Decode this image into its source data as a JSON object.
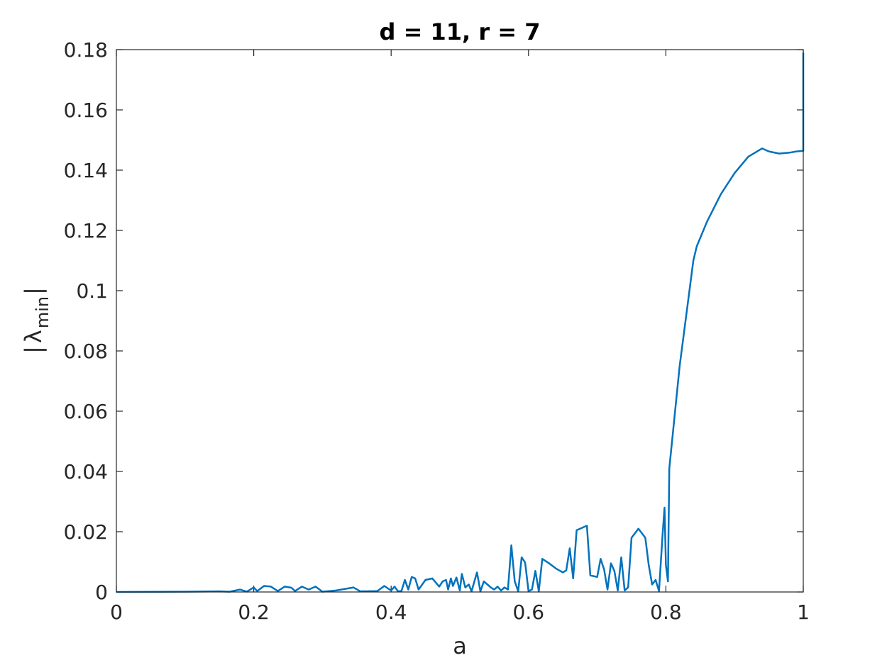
{
  "chart_data": {
    "type": "line",
    "title": "d = 11, r = 7",
    "xlabel": "a",
    "ylabel": {
      "open": "|",
      "symbol": "λ",
      "subscript": "min",
      "close": "|"
    },
    "xlim": [
      0,
      1
    ],
    "ylim": [
      0,
      0.18
    ],
    "x_ticks": [
      0,
      0.2,
      0.4,
      0.6,
      0.8,
      1
    ],
    "x_tick_labels": [
      "0",
      "0.2",
      "0.4",
      "0.6",
      "0.8",
      "1"
    ],
    "y_ticks": [
      0,
      0.02,
      0.04,
      0.06,
      0.08,
      0.1,
      0.12,
      0.14,
      0.16,
      0.18
    ],
    "y_tick_labels": [
      "0",
      "0.02",
      "0.04",
      "0.06",
      "0.08",
      "0.1",
      "0.12",
      "0.14",
      "0.16",
      "0.18"
    ],
    "grid": false,
    "series": [
      {
        "color": "#0072bd",
        "points": [
          [
            0,
            0
          ],
          [
            0.1,
            0.0001
          ],
          [
            0.15,
            0.0002
          ],
          [
            0.165,
            0.0001
          ],
          [
            0.18,
            0.0008
          ],
          [
            0.19,
            0.0001
          ],
          [
            0.2,
            0.0015
          ],
          [
            0.205,
            0.0003
          ],
          [
            0.215,
            0.002
          ],
          [
            0.225,
            0.0018
          ],
          [
            0.235,
            0.0003
          ],
          [
            0.245,
            0.0018
          ],
          [
            0.255,
            0.0014
          ],
          [
            0.26,
            0.0003
          ],
          [
            0.27,
            0.0018
          ],
          [
            0.28,
            0.0008
          ],
          [
            0.29,
            0.0018
          ],
          [
            0.3,
            0.0001
          ],
          [
            0.32,
            0.0005
          ],
          [
            0.345,
            0.0015
          ],
          [
            0.355,
            0.0002
          ],
          [
            0.38,
            0.0003
          ],
          [
            0.39,
            0.002
          ],
          [
            0.4,
            0.0005
          ],
          [
            0.405,
            0.0018
          ],
          [
            0.41,
            0.0002
          ],
          [
            0.415,
            0.0003
          ],
          [
            0.42,
            0.004
          ],
          [
            0.425,
            0.0008
          ],
          [
            0.43,
            0.005
          ],
          [
            0.435,
            0.0045
          ],
          [
            0.44,
            0.0008
          ],
          [
            0.45,
            0.004
          ],
          [
            0.46,
            0.0045
          ],
          [
            0.47,
            0.0018
          ],
          [
            0.475,
            0.0035
          ],
          [
            0.48,
            0.004
          ],
          [
            0.483,
            0.0008
          ],
          [
            0.487,
            0.0045
          ],
          [
            0.49,
            0.002
          ],
          [
            0.495,
            0.0048
          ],
          [
            0.5,
            0.0005
          ],
          [
            0.503,
            0.006
          ],
          [
            0.508,
            0.0015
          ],
          [
            0.513,
            0.0025
          ],
          [
            0.517,
            0.0002
          ],
          [
            0.525,
            0.0065
          ],
          [
            0.53,
            0.0002
          ],
          [
            0.535,
            0.0035
          ],
          [
            0.545,
            0.0015
          ],
          [
            0.55,
            0.0008
          ],
          [
            0.555,
            0.0018
          ],
          [
            0.56,
            0.0005
          ],
          [
            0.565,
            0.0015
          ],
          [
            0.57,
            0.0008
          ],
          [
            0.575,
            0.0155
          ],
          [
            0.58,
            0.0035
          ],
          [
            0.585,
            0.0002
          ],
          [
            0.59,
            0.0115
          ],
          [
            0.595,
            0.0098
          ],
          [
            0.6,
            0.0003
          ],
          [
            0.605,
            0.0008
          ],
          [
            0.61,
            0.007
          ],
          [
            0.615,
            0.0002
          ],
          [
            0.62,
            0.011
          ],
          [
            0.63,
            0.0095
          ],
          [
            0.64,
            0.0078
          ],
          [
            0.65,
            0.0065
          ],
          [
            0.655,
            0.0072
          ],
          [
            0.66,
            0.0145
          ],
          [
            0.665,
            0.0045
          ],
          [
            0.67,
            0.0205
          ],
          [
            0.685,
            0.022
          ],
          [
            0.69,
            0.0055
          ],
          [
            0.7,
            0.005
          ],
          [
            0.705,
            0.011
          ],
          [
            0.71,
            0.0075
          ],
          [
            0.715,
            0.0008
          ],
          [
            0.72,
            0.0095
          ],
          [
            0.725,
            0.007
          ],
          [
            0.73,
            0.0005
          ],
          [
            0.735,
            0.0115
          ],
          [
            0.74,
            0.0005
          ],
          [
            0.745,
            0.0015
          ],
          [
            0.75,
            0.018
          ],
          [
            0.76,
            0.021
          ],
          [
            0.77,
            0.018
          ],
          [
            0.775,
            0.009
          ],
          [
            0.78,
            0.0025
          ],
          [
            0.785,
            0.004
          ],
          [
            0.79,
            0.0003
          ],
          [
            0.795,
            0.0185
          ],
          [
            0.798,
            0.028
          ],
          [
            0.8,
            0.009
          ],
          [
            0.803,
            0.0035
          ],
          [
            0.805,
            0.041
          ],
          [
            0.82,
            0.075
          ],
          [
            0.84,
            0.11
          ],
          [
            0.845,
            0.1148
          ],
          [
            0.86,
            0.123
          ],
          [
            0.88,
            0.132
          ],
          [
            0.9,
            0.139
          ],
          [
            0.92,
            0.1445
          ],
          [
            0.94,
            0.1472
          ],
          [
            0.95,
            0.1462
          ],
          [
            0.965,
            0.1455
          ],
          [
            0.98,
            0.1458
          ],
          [
            0.99,
            0.1462
          ],
          [
            1,
            0.1464
          ],
          [
            1,
            0.179
          ]
        ]
      }
    ]
  }
}
